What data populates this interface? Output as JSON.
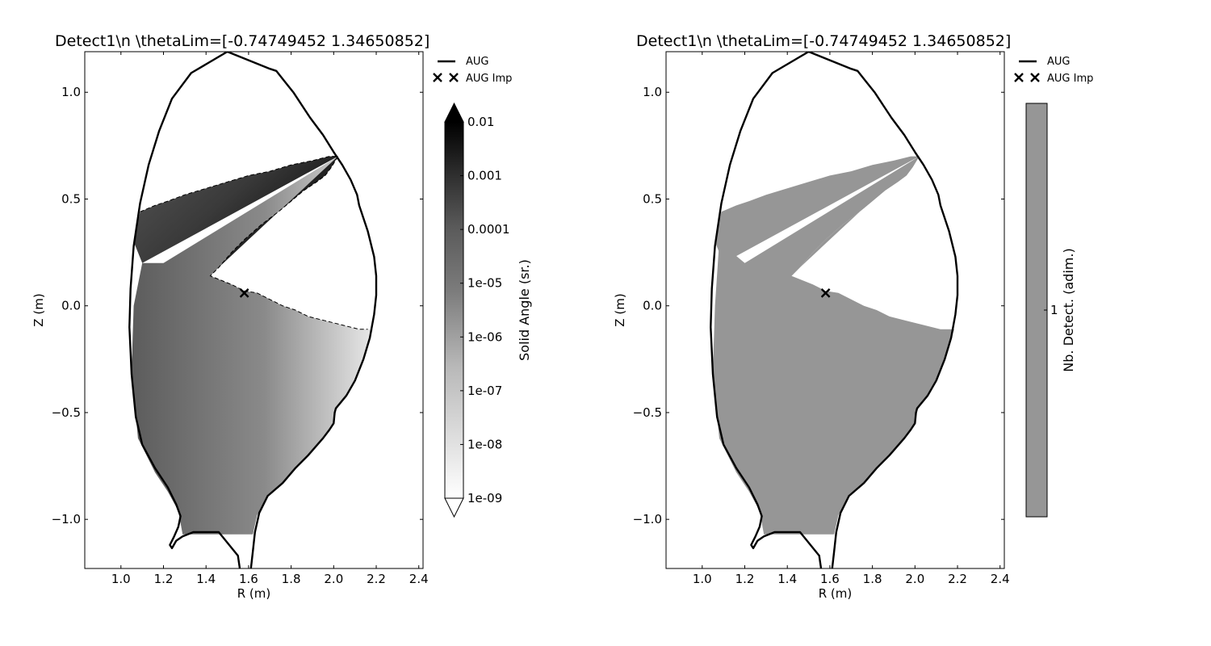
{
  "chart_data": [
    {
      "type": "heatmap",
      "title": "Detect1\\n \\thetaLim=[-0.74749452  1.34650852]",
      "xlabel": "R (m)",
      "ylabel": "Z (m)",
      "xlim": [
        0.83,
        2.42
      ],
      "ylim": [
        -1.23,
        1.19
      ],
      "xticks": [
        "1.0",
        "1.2",
        "1.4",
        "1.6",
        "1.8",
        "2.0",
        "2.2",
        "2.4"
      ],
      "yticks": [
        "−1.0",
        "−0.5",
        "0.0",
        "0.5",
        "1.0"
      ],
      "xtick_values": [
        1.0,
        1.2,
        1.4,
        1.6,
        1.8,
        2.0,
        2.2,
        2.4
      ],
      "ytick_values": [
        -1.0,
        -0.5,
        0.0,
        0.5,
        1.0
      ],
      "legend": [
        {
          "label": "AUG",
          "style": "line"
        },
        {
          "label": "AUG Imp",
          "style": "cross"
        }
      ],
      "legend_placement": "outside-top-right",
      "impact_point": [
        1.58,
        0.06
      ],
      "colorbar": {
        "label": "Solid Angle (sr.)",
        "scale": "log",
        "ticks": [
          "0.01",
          "0.001",
          "0.0001",
          "1e-05",
          "1e-06",
          "1e-07",
          "1e-08",
          "1e-09"
        ],
        "range": [
          1e-09,
          0.01
        ],
        "extend": "both"
      },
      "colormap": "gray_r"
    },
    {
      "type": "heatmap",
      "title": "Detect1\\n \\thetaLim=[-0.74749452  1.34650852]",
      "xlabel": "R (m)",
      "ylabel": "Z (m)",
      "xlim": [
        0.83,
        2.42
      ],
      "ylim": [
        -1.23,
        1.19
      ],
      "xticks": [
        "1.0",
        "1.2",
        "1.4",
        "1.6",
        "1.8",
        "2.0",
        "2.2",
        "2.4"
      ],
      "yticks": [
        "−1.0",
        "−0.5",
        "0.0",
        "0.5",
        "1.0"
      ],
      "xtick_values": [
        1.0,
        1.2,
        1.4,
        1.6,
        1.8,
        2.0,
        2.2,
        2.4
      ],
      "ytick_values": [
        -1.0,
        -0.5,
        0.0,
        0.5,
        1.0
      ],
      "legend": [
        {
          "label": "AUG",
          "style": "line"
        },
        {
          "label": "AUG Imp",
          "style": "cross"
        }
      ],
      "legend_placement": "outside-top-right",
      "impact_point": [
        1.58,
        0.06
      ],
      "colorbar": {
        "label": "Nb. Detect. (adim.)",
        "ticks": [
          "1"
        ],
        "fill_color": "#969696"
      }
    }
  ],
  "vessel_outline": [
    [
      1.5,
      1.19
    ],
    [
      1.33,
      1.09
    ],
    [
      1.24,
      0.97
    ],
    [
      1.18,
      0.82
    ],
    [
      1.13,
      0.66
    ],
    [
      1.09,
      0.48
    ],
    [
      1.06,
      0.28
    ],
    [
      1.045,
      0.08
    ],
    [
      1.04,
      -0.1
    ],
    [
      1.05,
      -0.32
    ],
    [
      1.07,
      -0.52
    ],
    [
      1.1,
      -0.65
    ],
    [
      1.16,
      -0.76
    ],
    [
      1.22,
      -0.85
    ],
    [
      1.26,
      -0.93
    ],
    [
      1.28,
      -0.985
    ],
    [
      1.27,
      -1.035
    ],
    [
      1.25,
      -1.08
    ],
    [
      1.23,
      -1.12
    ],
    [
      1.24,
      -1.135
    ],
    [
      1.26,
      -1.1
    ],
    [
      1.29,
      -1.08
    ],
    [
      1.34,
      -1.06
    ],
    [
      1.46,
      -1.06
    ],
    [
      1.55,
      -1.17
    ],
    [
      1.56,
      -1.24
    ],
    [
      1.61,
      -1.24
    ],
    [
      1.62,
      -1.15
    ],
    [
      1.63,
      -1.06
    ],
    [
      1.65,
      -0.97
    ],
    [
      1.69,
      -0.89
    ],
    [
      1.76,
      -0.83
    ],
    [
      1.82,
      -0.76
    ],
    [
      1.88,
      -0.7
    ],
    [
      1.95,
      -0.62
    ],
    [
      1.98,
      -0.58
    ],
    [
      2.0,
      -0.55
    ],
    [
      2.005,
      -0.5
    ],
    [
      2.01,
      -0.48
    ],
    [
      2.06,
      -0.42
    ],
    [
      2.1,
      -0.35
    ],
    [
      2.14,
      -0.25
    ],
    [
      2.17,
      -0.15
    ],
    [
      2.19,
      -0.04
    ],
    [
      2.2,
      0.05
    ],
    [
      2.2,
      0.14
    ],
    [
      2.19,
      0.23
    ],
    [
      2.16,
      0.35
    ],
    [
      2.12,
      0.47
    ],
    [
      2.11,
      0.52
    ],
    [
      2.08,
      0.59
    ],
    [
      2.04,
      0.66
    ],
    [
      2.0,
      0.72
    ],
    [
      1.95,
      0.8
    ],
    [
      1.89,
      0.88
    ],
    [
      1.85,
      0.94
    ],
    [
      1.81,
      1.0
    ],
    [
      1.77,
      1.05
    ],
    [
      1.73,
      1.1
    ],
    [
      1.7,
      1.11
    ],
    [
      1.5,
      1.19
    ]
  ],
  "cone_inner": [
    [
      2.02,
      0.7
    ],
    [
      1.99,
      0.65
    ],
    [
      1.96,
      0.61
    ],
    [
      1.92,
      0.58
    ],
    [
      1.86,
      0.54
    ],
    [
      1.8,
      0.49
    ],
    [
      1.74,
      0.44
    ],
    [
      1.66,
      0.38
    ],
    [
      1.58,
      0.31
    ],
    [
      1.52,
      0.25
    ],
    [
      1.46,
      0.18
    ],
    [
      1.42,
      0.14
    ],
    [
      1.47,
      0.12
    ],
    [
      1.52,
      0.1
    ],
    [
      1.58,
      0.07
    ],
    [
      1.64,
      0.06
    ],
    [
      1.7,
      0.03
    ],
    [
      1.76,
      0.0
    ],
    [
      1.82,
      -0.02
    ],
    [
      1.88,
      -0.05
    ],
    [
      1.96,
      -0.07
    ],
    [
      2.04,
      -0.09
    ],
    [
      2.12,
      -0.11
    ],
    [
      2.16,
      -0.11
    ]
  ],
  "cone_upper": [
    [
      1.09,
      0.44
    ],
    [
      1.16,
      0.47
    ],
    [
      1.22,
      0.49
    ],
    [
      1.3,
      0.52
    ],
    [
      1.4,
      0.55
    ],
    [
      1.5,
      0.58
    ],
    [
      1.6,
      0.61
    ],
    [
      1.7,
      0.63
    ],
    [
      1.8,
      0.66
    ],
    [
      1.9,
      0.68
    ],
    [
      1.98,
      0.7
    ],
    [
      2.02,
      0.7
    ]
  ],
  "region_bottom": [
    [
      1.08,
      -0.62
    ],
    [
      1.16,
      -0.78
    ],
    [
      1.22,
      -0.87
    ],
    [
      1.27,
      -0.96
    ],
    [
      1.29,
      -1.07
    ],
    [
      1.4,
      -1.07
    ],
    [
      1.62,
      -1.07
    ],
    [
      1.64,
      -0.98
    ],
    [
      1.69,
      -0.89
    ],
    [
      1.76,
      -0.83
    ],
    [
      1.82,
      -0.76
    ],
    [
      1.88,
      -0.7
    ],
    [
      1.95,
      -0.62
    ],
    [
      1.98,
      -0.58
    ],
    [
      2.0,
      -0.55
    ],
    [
      2.005,
      -0.5
    ],
    [
      2.01,
      -0.48
    ],
    [
      2.06,
      -0.42
    ],
    [
      2.1,
      -0.35
    ],
    [
      2.14,
      -0.25
    ],
    [
      2.17,
      -0.15
    ],
    [
      2.185,
      -0.11
    ]
  ]
}
